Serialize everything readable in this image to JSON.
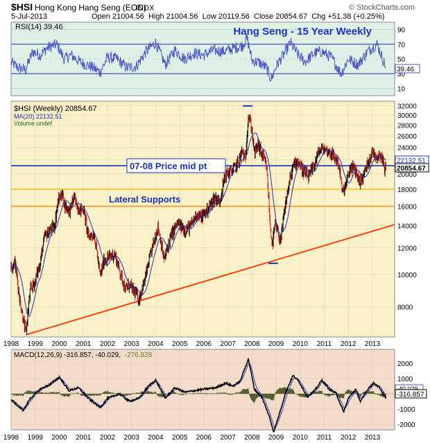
{
  "header": {
    "symbol": "$HSI",
    "name": "Hong Kong Hang Seng (EOD)",
    "exchange": "INDX",
    "date": "5-Jul-2013",
    "quote": "Open 21004.56  High 21004.56  Low 20119.56  Close 20854.67  Chg +51.38 (+0.25%)",
    "watermark": "© StockCharts.com",
    "quote_color": "#000000"
  },
  "colors": {
    "rsi_bg": "#dff0e6",
    "price_bg": "#fbf1c9",
    "macd_bg": "#f3dcc9",
    "rsi_line": "#4a56c8",
    "ma_line": "#1a2fb8",
    "bull": "#000000",
    "bear": "#d42020",
    "blue_level": "#1a2fb8",
    "yellow_level": "#f0c020",
    "orange_level": "#f09020",
    "trend": "#ff4010",
    "macd_line": "#000000",
    "signal_line": "#4a56c8",
    "hist": "#555f30",
    "title_color": "#1a33c8"
  },
  "rsi_panel": {
    "label": "RSI(14) 39.46",
    "title": "Hang Seng - 15 Year Weekly",
    "ticks": [
      "90",
      "70",
      "50",
      "30",
      "10"
    ],
    "tick_values": [
      90,
      70,
      50,
      30,
      10
    ],
    "value_box": "39.46",
    "last_value": 39.46
  },
  "price_panel": {
    "legend_symbol": "$HSI (Weekly) 20854.67",
    "legend_ma": "MA(20) 22132.51",
    "legend_volume": "Volume undef",
    "ticks": [
      "32000",
      "30000",
      "28000",
      "26000",
      "24000",
      "22000",
      "20000",
      "18000",
      "16000",
      "14000",
      "12000",
      "10000",
      "8000"
    ],
    "tick_values": [
      32000,
      30000,
      28000,
      26000,
      24000,
      22000,
      20000,
      18000,
      16000,
      14000,
      12000,
      10000,
      8000
    ],
    "ma_box": "22132.51",
    "close_box": "20854.67",
    "ma_value": 22132.51,
    "close_value": 20854.67,
    "annotation_mid": "07-08 Price mid pt",
    "annotation_supports": "Lateral Supports",
    "ylim": [
      6500,
      33000
    ]
  },
  "macd_panel": {
    "label_main": "MACD(12,26,9) -316.857, -40.029,",
    "label_hist": "-276.828",
    "ticks": [
      "2000",
      "1000",
      "0",
      "-1000",
      "-2000"
    ],
    "tick_values": [
      2000,
      1000,
      0,
      -1000,
      -2000
    ],
    "box_upper": "-40.029",
    "box_lower": "-316.857",
    "signal_value": -40.029,
    "macd_value": -316.857
  },
  "years": [
    "1998",
    "1999",
    "2000",
    "2001",
    "2002",
    "2003",
    "2004",
    "2005",
    "2006",
    "2007",
    "2008",
    "2009",
    "2010",
    "2011",
    "2012",
    "2013"
  ],
  "chart_data": {
    "type": "line",
    "title": "Hang Seng - 15 Year Weekly",
    "x_start": 1998.0,
    "x_end": 2013.92,
    "price_anchors": [
      [
        1998.0,
        10500
      ],
      [
        1998.15,
        11000
      ],
      [
        1998.35,
        8500
      ],
      [
        1998.55,
        7000
      ],
      [
        1998.62,
        6700
      ],
      [
        1998.8,
        9000
      ],
      [
        1999.0,
        9500
      ],
      [
        1999.2,
        10800
      ],
      [
        1999.4,
        13000
      ],
      [
        1999.6,
        13500
      ],
      [
        1999.8,
        14000
      ],
      [
        1999.95,
        16500
      ],
      [
        2000.1,
        17500
      ],
      [
        2000.25,
        16000
      ],
      [
        2000.45,
        15500
      ],
      [
        2000.6,
        17000
      ],
      [
        2000.85,
        15500
      ],
      [
        2001.0,
        15800
      ],
      [
        2001.2,
        13000
      ],
      [
        2001.45,
        13200
      ],
      [
        2001.7,
        9800
      ],
      [
        2001.85,
        11000
      ],
      [
        2002.0,
        11200
      ],
      [
        2002.3,
        11500
      ],
      [
        2002.5,
        10300
      ],
      [
        2002.75,
        9000
      ],
      [
        2002.9,
        9300
      ],
      [
        2003.2,
        8700
      ],
      [
        2003.3,
        8400
      ],
      [
        2003.55,
        9600
      ],
      [
        2003.8,
        11500
      ],
      [
        2004.1,
        13900
      ],
      [
        2004.35,
        11000
      ],
      [
        2004.6,
        12800
      ],
      [
        2004.9,
        14200
      ],
      [
        2005.2,
        13600
      ],
      [
        2005.45,
        13900
      ],
      [
        2005.7,
        15200
      ],
      [
        2005.9,
        14800
      ],
      [
        2006.2,
        15800
      ],
      [
        2006.45,
        17000
      ],
      [
        2006.65,
        16500
      ],
      [
        2006.9,
        19900
      ],
      [
        2007.2,
        20500
      ],
      [
        2007.45,
        21800
      ],
      [
        2007.6,
        23500
      ],
      [
        2007.72,
        21800
      ],
      [
        2007.85,
        30000
      ],
      [
        2007.98,
        27500
      ],
      [
        2008.1,
        23000
      ],
      [
        2008.25,
        24500
      ],
      [
        2008.45,
        22500
      ],
      [
        2008.6,
        21000
      ],
      [
        2008.75,
        14000
      ],
      [
        2008.85,
        12200
      ],
      [
        2008.95,
        14000
      ],
      [
        2009.05,
        13500
      ],
      [
        2009.2,
        12500
      ],
      [
        2009.35,
        15500
      ],
      [
        2009.5,
        18000
      ],
      [
        2009.7,
        21000
      ],
      [
        2009.9,
        22000
      ],
      [
        2010.1,
        20500
      ],
      [
        2010.35,
        19500
      ],
      [
        2010.55,
        21000
      ],
      [
        2010.8,
        23500
      ],
      [
        2011.0,
        23800
      ],
      [
        2011.3,
        23000
      ],
      [
        2011.6,
        21500
      ],
      [
        2011.75,
        17500
      ],
      [
        2011.9,
        18500
      ],
      [
        2012.1,
        21000
      ],
      [
        2012.3,
        20500
      ],
      [
        2012.45,
        19000
      ],
      [
        2012.6,
        19500
      ],
      [
        2012.8,
        21500
      ],
      [
        2013.0,
        23300
      ],
      [
        2013.2,
        22500
      ],
      [
        2013.35,
        23000
      ],
      [
        2013.5,
        20800
      ],
      [
        2013.55,
        20854
      ]
    ],
    "rsi_anchors": [
      [
        1998.0,
        45
      ],
      [
        1998.3,
        38
      ],
      [
        1998.6,
        35
      ],
      [
        1998.9,
        60
      ],
      [
        1999.2,
        55
      ],
      [
        1999.5,
        65
      ],
      [
        1999.9,
        70
      ],
      [
        2000.2,
        50
      ],
      [
        2000.5,
        55
      ],
      [
        2000.9,
        45
      ],
      [
        2001.3,
        40
      ],
      [
        2001.7,
        32
      ],
      [
        2002.0,
        52
      ],
      [
        2002.4,
        50
      ],
      [
        2002.8,
        38
      ],
      [
        2003.2,
        40
      ],
      [
        2003.6,
        60
      ],
      [
        2004.0,
        72
      ],
      [
        2004.4,
        42
      ],
      [
        2004.8,
        62
      ],
      [
        2005.2,
        50
      ],
      [
        2005.6,
        58
      ],
      [
        2006.0,
        55
      ],
      [
        2006.4,
        62
      ],
      [
        2006.8,
        60
      ],
      [
        2007.2,
        64
      ],
      [
        2007.6,
        68
      ],
      [
        2007.8,
        78
      ],
      [
        2008.0,
        48
      ],
      [
        2008.3,
        45
      ],
      [
        2008.6,
        38
      ],
      [
        2008.8,
        22
      ],
      [
        2009.0,
        40
      ],
      [
        2009.3,
        55
      ],
      [
        2009.6,
        72
      ],
      [
        2009.9,
        56
      ],
      [
        2010.2,
        46
      ],
      [
        2010.6,
        58
      ],
      [
        2010.9,
        60
      ],
      [
        2011.3,
        52
      ],
      [
        2011.7,
        30
      ],
      [
        2012.0,
        50
      ],
      [
        2012.4,
        42
      ],
      [
        2012.8,
        60
      ],
      [
        2013.0,
        66
      ],
      [
        2013.2,
        70
      ],
      [
        2013.4,
        52
      ],
      [
        2013.55,
        39.46
      ]
    ],
    "macd_anchors": [
      [
        1998.0,
        -400
      ],
      [
        1998.5,
        -1100
      ],
      [
        1998.8,
        -300
      ],
      [
        1999.2,
        300
      ],
      [
        1999.6,
        600
      ],
      [
        2000.0,
        1100
      ],
      [
        2000.4,
        200
      ],
      [
        2000.8,
        400
      ],
      [
        2001.2,
        -300
      ],
      [
        2001.7,
        -900
      ],
      [
        2002.0,
        -300
      ],
      [
        2002.5,
        0
      ],
      [
        2002.9,
        -500
      ],
      [
        2003.3,
        -300
      ],
      [
        2003.7,
        500
      ],
      [
        2004.0,
        900
      ],
      [
        2004.4,
        -300
      ],
      [
        2004.8,
        400
      ],
      [
        2005.2,
        100
      ],
      [
        2005.6,
        200
      ],
      [
        2006.0,
        300
      ],
      [
        2006.5,
        400
      ],
      [
        2006.9,
        700
      ],
      [
        2007.2,
        500
      ],
      [
        2007.5,
        800
      ],
      [
        2007.85,
        2300
      ],
      [
        2008.1,
        300
      ],
      [
        2008.4,
        -200
      ],
      [
        2008.7,
        -1400
      ],
      [
        2008.9,
        -2500
      ],
      [
        2009.1,
        -1500
      ],
      [
        2009.4,
        100
      ],
      [
        2009.7,
        1200
      ],
      [
        2009.95,
        800
      ],
      [
        2010.3,
        -200
      ],
      [
        2010.6,
        200
      ],
      [
        2010.9,
        900
      ],
      [
        2011.2,
        300
      ],
      [
        2011.5,
        0
      ],
      [
        2011.8,
        -1200
      ],
      [
        2012.0,
        -300
      ],
      [
        2012.3,
        300
      ],
      [
        2012.5,
        -500
      ],
      [
        2012.85,
        400
      ],
      [
        2013.05,
        700
      ],
      [
        2013.3,
        400
      ],
      [
        2013.55,
        -317
      ]
    ],
    "annotation_lines": {
      "mid_level": 21150,
      "upper_support": 18000,
      "lower_support": 16000,
      "trend_start": [
        1998.62,
        6600
      ],
      "trend_end": [
        2013.92,
        14100
      ],
      "peak_tick": [
        2007.82,
        31950
      ],
      "trough_tick": [
        2008.88,
        10800
      ]
    }
  }
}
